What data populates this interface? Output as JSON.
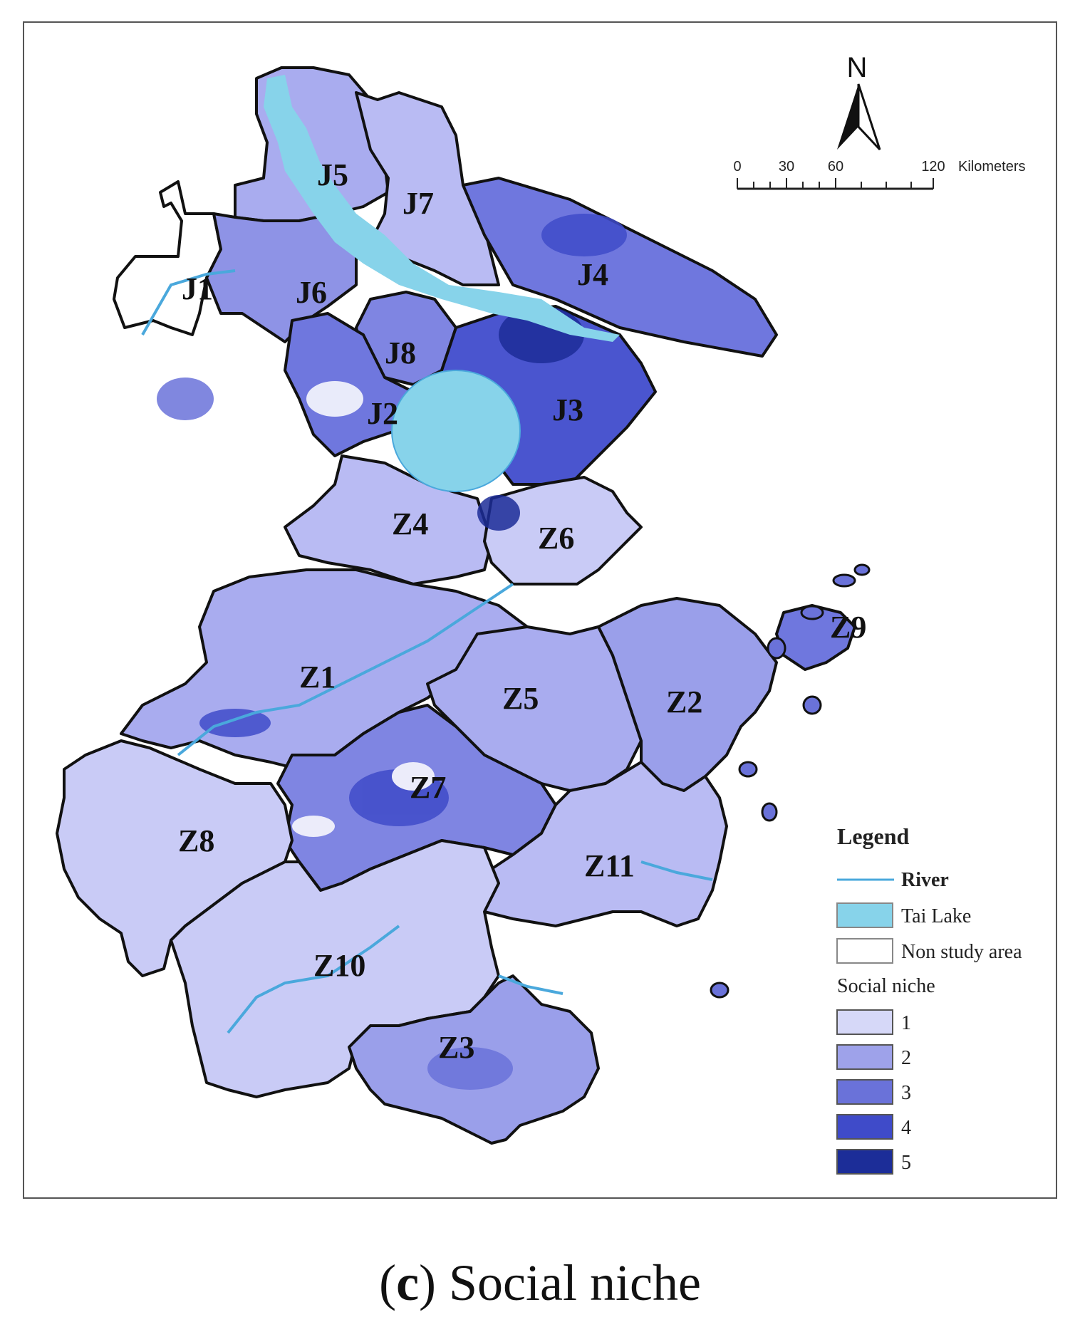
{
  "map": {
    "north_label": "N",
    "scale": {
      "ticks": [
        "0",
        "30",
        "60",
        "120"
      ],
      "unit": "Kilometers"
    },
    "regions": [
      {
        "id": "J1",
        "fill": "#ffffff"
      },
      {
        "id": "J5",
        "fill": "#a9acef"
      },
      {
        "id": "J7",
        "fill": "#b9bbf3"
      },
      {
        "id": "J4",
        "fill": "#6f77de"
      },
      {
        "id": "J6",
        "fill": "#8e93e6"
      },
      {
        "id": "J8",
        "fill": "#7f85e2"
      },
      {
        "id": "J2",
        "fill": "#6f77de"
      },
      {
        "id": "J3",
        "fill": "#4a55cf"
      },
      {
        "id": "Z4",
        "fill": "#b9bbf3"
      },
      {
        "id": "Z6",
        "fill": "#c9cbf6"
      },
      {
        "id": "Z1",
        "fill": "#a9acef"
      },
      {
        "id": "Z9",
        "fill": "#6f77de"
      },
      {
        "id": "Z5",
        "fill": "#a9acef"
      },
      {
        "id": "Z2",
        "fill": "#9a9fea"
      },
      {
        "id": "Z7",
        "fill": "#7f85e2"
      },
      {
        "id": "Z8",
        "fill": "#c9cbf6"
      },
      {
        "id": "Z11",
        "fill": "#b9bbf3"
      },
      {
        "id": "Z10",
        "fill": "#c9cbf6"
      },
      {
        "id": "Z3",
        "fill": "#9a9fea"
      }
    ],
    "colors": {
      "river": "#4aa8dc",
      "tai_lake": "#87d3ea",
      "boundary": "#111111"
    }
  },
  "legend": {
    "title": "Legend",
    "river": "River",
    "tai_lake": "Tai Lake",
    "non_study": "Non study area",
    "niche_title": "Social niche",
    "classes": [
      {
        "label": "1",
        "color": "#d6d8f8"
      },
      {
        "label": "2",
        "color": "#9ea2ea"
      },
      {
        "label": "3",
        "color": "#6a72d9"
      },
      {
        "label": "4",
        "color": "#3f4bc9"
      },
      {
        "label": "5",
        "color": "#1c2d98"
      }
    ]
  },
  "caption": {
    "letter": "c",
    "text": "Social niche"
  }
}
